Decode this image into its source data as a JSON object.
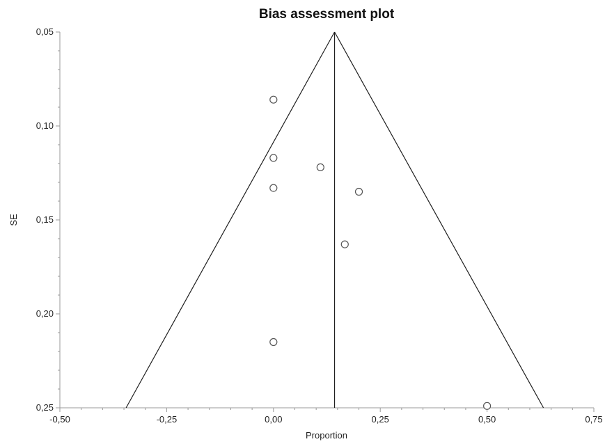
{
  "chart_data": {
    "type": "scatter",
    "title": "Bias assessment plot",
    "xlabel": "Proportion",
    "ylabel": "SE",
    "xlim": [
      -0.5,
      0.75
    ],
    "ylim": [
      0.05,
      0.25
    ],
    "y_axis_inverted": true,
    "grid": false,
    "legend": "none",
    "x_ticks": [
      -0.5,
      -0.25,
      0.0,
      0.25,
      0.5,
      0.75
    ],
    "x_tick_labels": [
      "-0,50",
      "-0,25",
      "0,00",
      "0,25",
      "0,50",
      "0,75"
    ],
    "y_ticks": [
      0.05,
      0.1,
      0.15,
      0.2,
      0.25
    ],
    "y_tick_labels": [
      "0,05",
      "0,10",
      "0,15",
      "0,20",
      "0,25"
    ],
    "pooled_estimate": 0.143,
    "funnel_apex_se": 0.05,
    "funnel_left_x_at_max_se": -0.345,
    "funnel_right_x_at_max_se": 0.632,
    "points": [
      {
        "x": 0.0,
        "y": 0.086
      },
      {
        "x": 0.0,
        "y": 0.117
      },
      {
        "x": 0.11,
        "y": 0.122
      },
      {
        "x": 0.0,
        "y": 0.133
      },
      {
        "x": 0.2,
        "y": 0.135
      },
      {
        "x": 0.167,
        "y": 0.163
      },
      {
        "x": 0.0,
        "y": 0.215
      },
      {
        "x": 0.5,
        "y": 0.249
      }
    ],
    "colors": {
      "line": "#1f1f1f",
      "point_stroke": "#555555",
      "axis": "#9a9a9a"
    }
  }
}
